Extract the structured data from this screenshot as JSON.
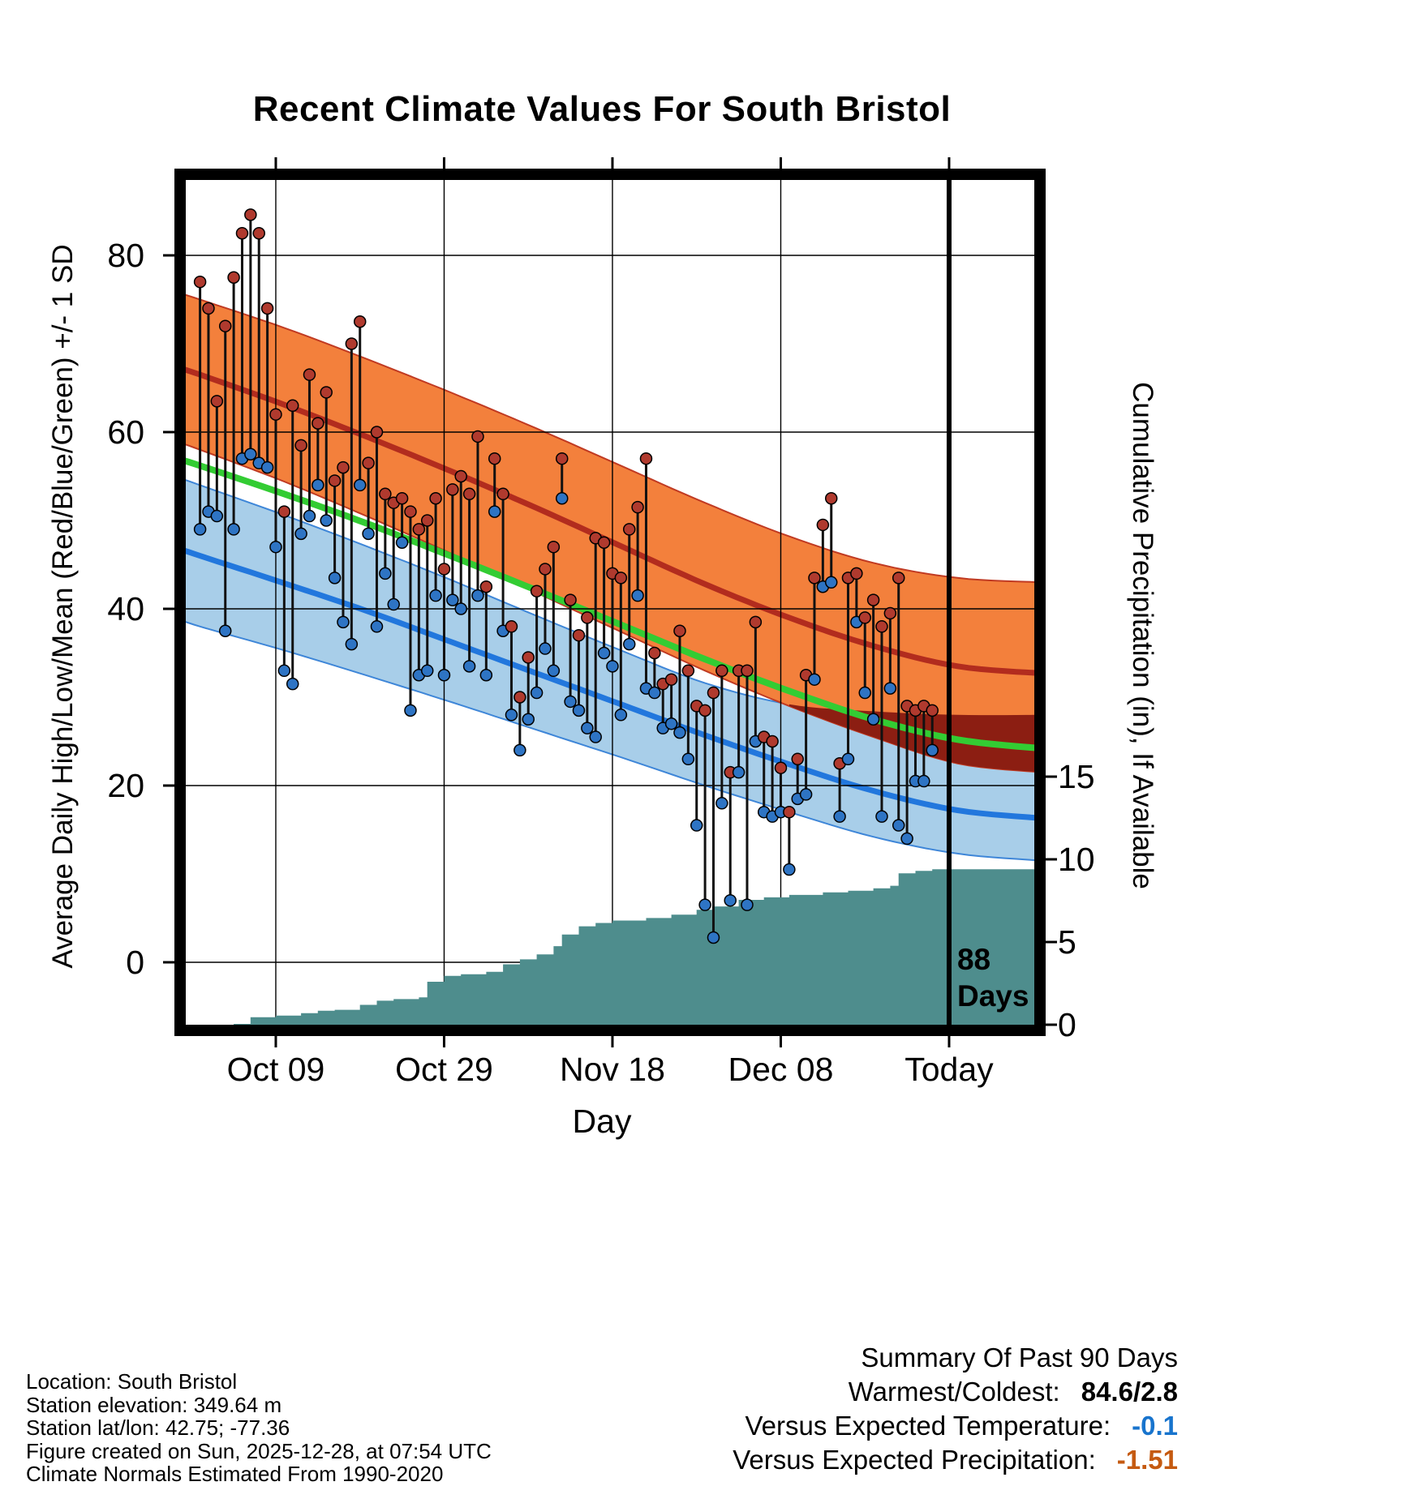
{
  "page": {
    "title": "Recent Climate Values For South Bristol"
  },
  "axes": {
    "y_left_label": "Average Daily High/Low/Mean (Red/Blue/Green) +/- 1 SD",
    "y_right_label": "Cumulative Precipitation (in), If Available",
    "x_label": "Day",
    "y_left_ticks": [
      "0",
      "20",
      "40",
      "60",
      "80"
    ],
    "y_right_ticks": [
      "0",
      "5",
      "10",
      "15"
    ],
    "x_ticks": [
      "Oct 09",
      "Oct 29",
      "Nov 18",
      "Dec 08",
      "Today"
    ]
  },
  "annotation": {
    "days_number": "88",
    "days_word": "Days"
  },
  "footer": {
    "lines": [
      "Location: South Bristol",
      "Station elevation: 349.64 m",
      "Station lat/lon: 42.75; -77.36",
      "Figure created on Sun, 2025-12-28, at 07:54 UTC",
      "Climate Normals Estimated From 1990-2020"
    ]
  },
  "summary": {
    "title": "Summary Of Past 90 Days",
    "rows": [
      {
        "label": "Warmest/Coldest:",
        "value": "84.6/2.8",
        "color": "#000000"
      },
      {
        "label": "Versus Expected Temperature:",
        "value": "-0.1",
        "color": "#1874CD"
      },
      {
        "label": "Versus Expected Precipitation:",
        "value": "-1.51",
        "color": "#C55A11"
      }
    ]
  },
  "chart_data": {
    "type": "line",
    "title": "Recent Climate Values For South Bristol",
    "x_axis": {
      "label": "Day",
      "tick_labels": [
        "Oct 09",
        "Oct 29",
        "Nov 18",
        "Dec 08",
        "Today"
      ],
      "tick_days": [
        9,
        29,
        49,
        69,
        89
      ],
      "start_date": "Sep 30",
      "days_available": 88
    },
    "y_left": {
      "label": "Average Daily High/Low/Mean (Red/Blue/Green) +/- 1 SD",
      "ticks": [
        0,
        20,
        40,
        60,
        80
      ],
      "range": [
        -7,
        88.5
      ]
    },
    "y_right": {
      "label": "Cumulative Precipitation (in), If Available",
      "ticks": [
        0,
        5,
        10,
        15
      ],
      "range": [
        0,
        15
      ]
    },
    "today_day": 89,
    "daily": {
      "highs": [
        77,
        74,
        63.5,
        72,
        77.5,
        82.5,
        84.6,
        82.5,
        74,
        62,
        51,
        63,
        58.5,
        66.5,
        61,
        64.5,
        54.5,
        56,
        70,
        72.5,
        56.5,
        60,
        53,
        52,
        52.5,
        51,
        49,
        50,
        52.5,
        44.5,
        53.5,
        55,
        53,
        59.5,
        42.5,
        57,
        53,
        38,
        30,
        34.5,
        42,
        44.5,
        47,
        57,
        41,
        37,
        39,
        48,
        47.5,
        44,
        43.5,
        49,
        51.5,
        57,
        35,
        31.5,
        32,
        37.5,
        33,
        29,
        28.5,
        30.5,
        33,
        21.5,
        33,
        33,
        38.5,
        25.5,
        25,
        22,
        17,
        23,
        32.5,
        43.5,
        49.5,
        52.5,
        22.5,
        43.5,
        44,
        39,
        41,
        38,
        39.5,
        43.5,
        29,
        28.5,
        29,
        28.5
      ],
      "lows": [
        49,
        51,
        50.5,
        37.5,
        49,
        57,
        57.5,
        56.5,
        56,
        47,
        33,
        31.5,
        48.5,
        50.5,
        54,
        50,
        43.5,
        38.5,
        36,
        54,
        48.5,
        38,
        44,
        40.5,
        47.5,
        28.5,
        32.5,
        33,
        41.5,
        32.5,
        41,
        40,
        33.5,
        41.5,
        32.5,
        51,
        37.5,
        28,
        24,
        27.5,
        30.5,
        35.5,
        33,
        52.5,
        29.5,
        28.5,
        26.5,
        25.5,
        35,
        33.5,
        28,
        36,
        41.5,
        31,
        30.5,
        26.5,
        27,
        26,
        23,
        15.5,
        6.5,
        2.8,
        18,
        7,
        21.5,
        6.5,
        25,
        17,
        16.5,
        17,
        10.5,
        18.5,
        19,
        32,
        42.5,
        43,
        16.5,
        23,
        38.5,
        30.5,
        27.5,
        16.5,
        31,
        15.5,
        14,
        20.5,
        20.5,
        24
      ]
    },
    "normals": {
      "day_samples": [
        -3,
        0,
        10,
        20,
        30,
        40,
        50,
        60,
        70,
        80,
        90,
        100
      ],
      "high_upper": [
        75.9,
        75,
        71.8,
        68.2,
        64.4,
        60.4,
        56.2,
        52,
        48.2,
        45.2,
        43.5,
        43
      ],
      "high_mean": [
        67.4,
        66.5,
        63.1,
        59.4,
        55.5,
        51.4,
        47.1,
        42.8,
        39,
        35.8,
        33.5,
        32.7
      ],
      "high_lower": [
        59,
        58,
        54.4,
        50.4,
        46.2,
        41.8,
        37.4,
        33,
        29,
        25.5,
        22.5,
        21.5
      ],
      "mean": [
        57.1,
        56.2,
        53,
        49.6,
        45.9,
        42.1,
        38.2,
        34.3,
        30.7,
        27.5,
        25.2,
        24.2
      ],
      "low_upper": [
        55,
        54,
        50.6,
        47,
        43.2,
        39.2,
        35.3,
        31.6,
        29.2,
        28.4,
        28,
        28
      ],
      "low_mean": [
        47,
        46,
        42.9,
        39.7,
        36.2,
        32.7,
        29.2,
        25.7,
        22.4,
        19.4,
        17.2,
        16.3
      ],
      "low_lower": [
        39,
        38,
        35.3,
        32.4,
        29.4,
        26.3,
        23.2,
        20,
        17,
        14.2,
        12.3,
        11.5
      ]
    },
    "precip_cumulative_steps": [
      [
        -3,
        0
      ],
      [
        4,
        0.05
      ],
      [
        6,
        0.45
      ],
      [
        9,
        0.55
      ],
      [
        12,
        0.7
      ],
      [
        14,
        0.85
      ],
      [
        16,
        0.9
      ],
      [
        19,
        1.2
      ],
      [
        21,
        1.45
      ],
      [
        23,
        1.55
      ],
      [
        26,
        1.65
      ],
      [
        27,
        2.6
      ],
      [
        29,
        2.95
      ],
      [
        31,
        3.05
      ],
      [
        34,
        3.2
      ],
      [
        36,
        3.65
      ],
      [
        38,
        3.95
      ],
      [
        40,
        4.25
      ],
      [
        42,
        4.75
      ],
      [
        43,
        5.45
      ],
      [
        45,
        5.95
      ],
      [
        47,
        6.15
      ],
      [
        49,
        6.3
      ],
      [
        53,
        6.45
      ],
      [
        56,
        6.65
      ],
      [
        59,
        6.95
      ],
      [
        61,
        7.15
      ],
      [
        64,
        7.55
      ],
      [
        67,
        7.7
      ],
      [
        70,
        7.85
      ],
      [
        74,
        8
      ],
      [
        77,
        8.1
      ],
      [
        80,
        8.25
      ],
      [
        82,
        8.4
      ],
      [
        83,
        9.15
      ],
      [
        85,
        9.3
      ],
      [
        87,
        9.4
      ],
      [
        100,
        9.4
      ]
    ],
    "colors": {
      "high_band": "#F3803C",
      "high_edge": "#C03A22",
      "high_line": "#B22C1E",
      "overlap_band": "#8C1E12",
      "mean_line": "#33CC33",
      "low_band": "#A8CEE9",
      "low_edge": "#3E86D8",
      "low_line": "#2277DD",
      "precip_fill": "#4E8D8D",
      "dot_high": "#B03A2E",
      "dot_low": "#2E74C4",
      "range_line": "#111111",
      "grid": "#000000",
      "frame": "#000000"
    }
  }
}
